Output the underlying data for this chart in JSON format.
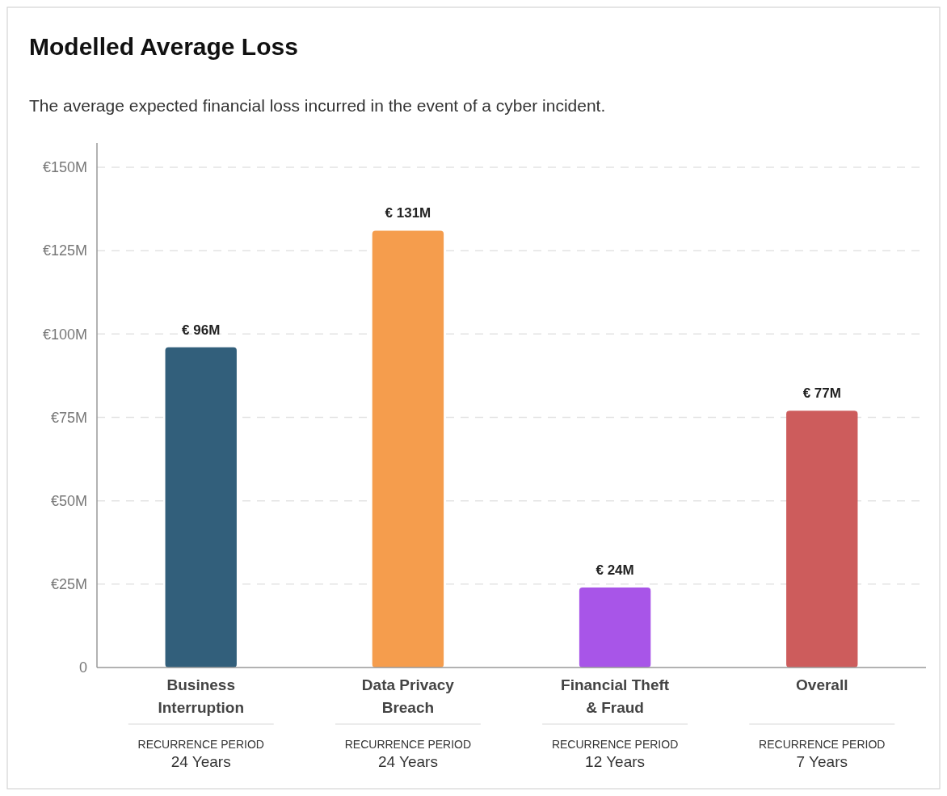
{
  "chart_data": {
    "type": "bar",
    "title": "Modelled Average Loss",
    "subtitle": "The average expected financial loss incurred in the event of a cyber incident.",
    "categories": [
      "Business Interruption",
      "Data Privacy Breach",
      "Financial Theft & Fraud",
      "Overall"
    ],
    "values": [
      96,
      131,
      24,
      77
    ],
    "colors": [
      "#325f7b",
      "#f59d4d",
      "#a855e8",
      "#cd5c5c"
    ],
    "value_labels": [
      "€ 96M",
      "€ 131M",
      "€ 24M",
      "€ 77M"
    ],
    "ylim": [
      0,
      150
    ],
    "yticks": [
      0,
      {
        "value": 25,
        "label": "€25M"
      },
      {
        "value": 50,
        "label": "€50M"
      },
      {
        "value": 75,
        "label": "€75M"
      },
      {
        "value": 100,
        "label": "€100M"
      },
      {
        "value": 125,
        "label": "€125M"
      },
      {
        "value": 150,
        "label": "€150M"
      }
    ],
    "grid": "y",
    "annotations": [
      "RECURRENCE PERIOD",
      "24 Years",
      "RECURRENCE PERIOD",
      "24 Years",
      "RECURRENCE PERIOD",
      "12 Years",
      "RECURRENCE PERIOD",
      "7 Years"
    ]
  }
}
